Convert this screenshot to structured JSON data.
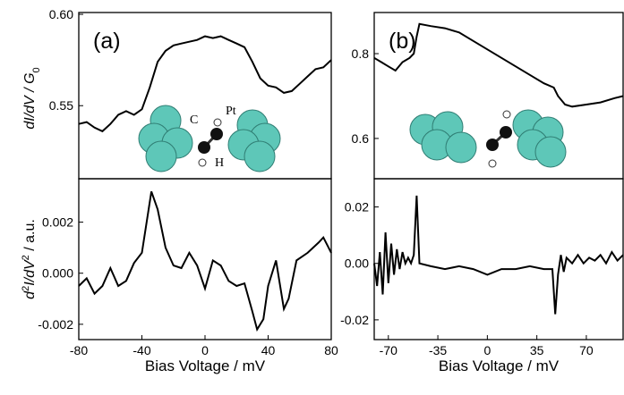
{
  "chart_data": [
    {
      "type": "line",
      "panel": "(a)",
      "ylabel": [
        "dI/dV / G",
        "0"
      ],
      "annotations": [
        "C",
        "H",
        "Pt"
      ],
      "color": "#000000",
      "xlim": [
        -80,
        80
      ],
      "ylim": [
        0.51,
        0.601
      ],
      "yticks": [
        0.55,
        {
          "value": 0.6,
          "label": "0.60"
        }
      ],
      "x": [
        -80,
        -75,
        -70,
        -65,
        -60,
        -55,
        -50,
        -45,
        -40,
        -35,
        -30,
        -25,
        -20,
        -15,
        -10,
        -5,
        0,
        5,
        10,
        15,
        20,
        25,
        30,
        35,
        40,
        45,
        50,
        55,
        60,
        65,
        70,
        75,
        80
      ],
      "values": [
        0.54,
        0.541,
        0.538,
        0.536,
        0.54,
        0.545,
        0.547,
        0.545,
        0.548,
        0.56,
        0.574,
        0.58,
        0.583,
        0.584,
        0.585,
        0.586,
        0.588,
        0.587,
        0.588,
        0.586,
        0.584,
        0.582,
        0.574,
        0.565,
        0.561,
        0.56,
        0.557,
        0.558,
        0.562,
        0.566,
        0.57,
        0.571,
        0.575
      ]
    },
    {
      "type": "line",
      "ylabel": [
        "d",
        "2",
        "I/dV",
        "2",
        " / a.u."
      ],
      "xlabel": "Bias Voltage / mV",
      "color": "#000000",
      "xlim": [
        -80,
        80
      ],
      "ylim": [
        -0.0026,
        0.0037
      ],
      "xticks": [
        -80,
        -40,
        0,
        40,
        80
      ],
      "yticks": [
        {
          "value": -0.002,
          "label": "-0.002"
        },
        {
          "value": 0,
          "label": "0.000"
        },
        {
          "value": 0.002,
          "label": "0.002"
        }
      ],
      "x": [
        -80,
        -75,
        -70,
        -65,
        -60,
        -55,
        -50,
        -45,
        -40,
        -37,
        -34,
        -30,
        -25,
        -20,
        -15,
        -10,
        -5,
        0,
        5,
        10,
        15,
        20,
        25,
        30,
        33,
        37,
        40,
        45,
        50,
        53,
        58,
        65,
        72,
        75,
        80
      ],
      "values": [
        -0.0005,
        -0.0002,
        -0.0008,
        -0.0005,
        0.0002,
        -0.0005,
        -0.0003,
        0.0004,
        0.0008,
        0.002,
        0.0032,
        0.0025,
        0.001,
        0.0003,
        0.0002,
        0.0008,
        0.0003,
        -0.0006,
        0.0005,
        0.0003,
        -0.0003,
        -0.0005,
        -0.0004,
        -0.0015,
        -0.0022,
        -0.0018,
        -0.0005,
        0.0005,
        -0.0014,
        -0.001,
        0.0005,
        0.0008,
        0.0012,
        0.0014,
        0.0008
      ]
    },
    {
      "type": "line",
      "panel": "(b)",
      "color": "#000000",
      "xlim": [
        -80,
        96
      ],
      "ylim": [
        0.505,
        0.897
      ],
      "yticks": [
        0.6,
        0.8
      ],
      "x": [
        -80,
        -75,
        -70,
        -65,
        -60,
        -55,
        -52,
        -50,
        -48,
        -40,
        -30,
        -20,
        -10,
        0,
        10,
        20,
        30,
        40,
        47,
        50,
        55,
        60,
        70,
        80,
        90,
        96
      ],
      "values": [
        0.79,
        0.78,
        0.77,
        0.76,
        0.78,
        0.79,
        0.8,
        0.84,
        0.87,
        0.865,
        0.86,
        0.85,
        0.83,
        0.81,
        0.79,
        0.77,
        0.75,
        0.73,
        0.72,
        0.7,
        0.68,
        0.675,
        0.68,
        0.685,
        0.695,
        0.7
      ]
    },
    {
      "type": "line",
      "xlabel": "Bias Voltage / mV",
      "color": "#000000",
      "xlim": [
        -80,
        96
      ],
      "ylim": [
        -0.027,
        0.03
      ],
      "xticks": [
        -70,
        -35,
        0,
        35,
        70
      ],
      "yticks": [
        -0.02,
        {
          "value": 0,
          "label": "0.00"
        },
        0.02
      ],
      "x": [
        -80,
        -78,
        -76,
        -74,
        -72,
        -70,
        -68,
        -66,
        -64,
        -62,
        -60,
        -58,
        -56,
        -54,
        -52,
        -50,
        -48,
        -40,
        -30,
        -20,
        -10,
        0,
        10,
        20,
        30,
        40,
        46,
        48,
        50,
        52,
        54,
        56,
        60,
        64,
        68,
        72,
        76,
        80,
        84,
        88,
        92,
        96
      ],
      "values": [
        0,
        -0.008,
        0.004,
        -0.011,
        0.011,
        -0.007,
        0.007,
        -0.004,
        0.005,
        -0.002,
        0.004,
        0,
        0.002,
        0,
        0.003,
        0.024,
        0,
        -0.001,
        -0.002,
        -0.001,
        -0.002,
        -0.004,
        -0.002,
        -0.002,
        -0.001,
        -0.002,
        -0.002,
        -0.018,
        -0.004,
        0.003,
        -0.003,
        0.002,
        0,
        0.003,
        0,
        0.002,
        0.001,
        0.003,
        0,
        0.004,
        0.001,
        0.003
      ]
    }
  ]
}
